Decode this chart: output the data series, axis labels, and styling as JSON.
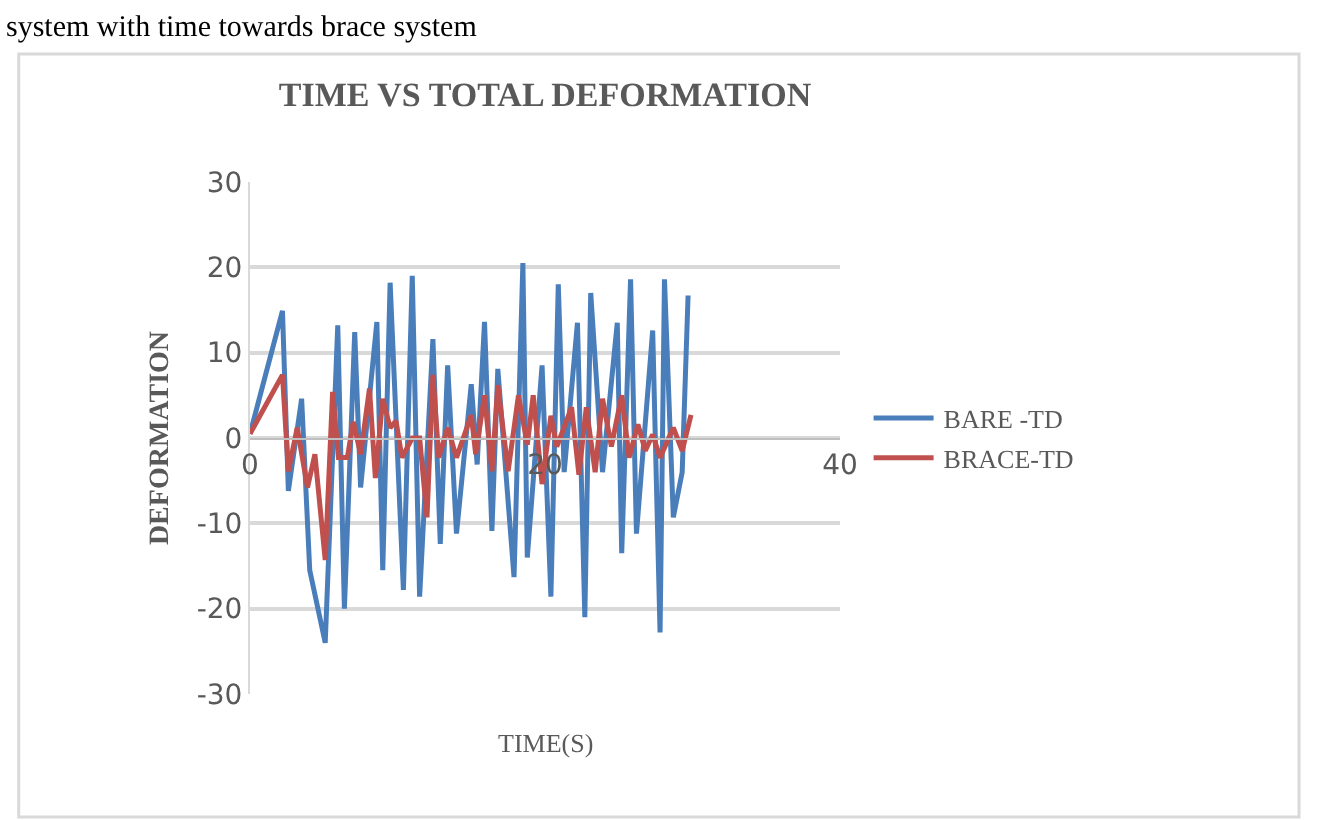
{
  "chart_data": {
    "type": "line",
    "title": "TIME VS TOTAL DEFORMATION",
    "xlabel": "TIME(S)",
    "ylabel": "DEFORMATION",
    "annotations": [
      "system with time towards brace system"
    ],
    "xlim": [
      0,
      40
    ],
    "xticks": [
      0,
      20,
      40
    ],
    "ylim": [
      -30,
      30
    ],
    "yticks": [
      -30,
      -20,
      -10,
      0,
      10,
      20,
      30
    ],
    "grid": "y",
    "legend": "right",
    "marker": "none",
    "line_style": "solid",
    "series": [
      {
        "name": "BARE -TD",
        "color": "#4a7ebb",
        "x": [
          0,
          2.2,
          2.6,
          3.5,
          4.05,
          5.1,
          5.95,
          6.4,
          7.1,
          7.5,
          8.6,
          9.0,
          9.5,
          10.4,
          11.0,
          11.5,
          12.4,
          12.9,
          13.4,
          14.0,
          15.0,
          15.4,
          15.9,
          16.4,
          16.8,
          17.9,
          18.5,
          18.8,
          19.8,
          20.4,
          20.9,
          21.3,
          22.2,
          22.7,
          23.1,
          23.9,
          24.9,
          25.2,
          25.8,
          26.2,
          27.3,
          27.8,
          28.1,
          28.7,
          29.3,
          29.7
        ],
        "values": [
          0.5,
          14.9,
          -6.2,
          4.6,
          -15.5,
          -24,
          13.2,
          -20,
          12.4,
          -5.8,
          13.6,
          -15.5,
          18.2,
          -17.8,
          19,
          -18.6,
          11.6,
          -12.4,
          8.5,
          -11.2,
          6.3,
          -3.1,
          13.6,
          -10.9,
          8.1,
          -16.3,
          20.5,
          -14,
          8.5,
          -18.6,
          18,
          -4,
          13.5,
          -21,
          17,
          -4,
          13.5,
          -13.5,
          18.6,
          -11.2,
          12.6,
          -22.8,
          18.6,
          -9.3,
          -4,
          16.7
        ]
      },
      {
        "name": "BRACE-TD",
        "color": "#c0504d",
        "x": [
          0,
          2.2,
          2.6,
          3.2,
          3.9,
          4.4,
          5.1,
          5.6,
          6.0,
          6.6,
          7.0,
          7.5,
          8.1,
          8.5,
          9.0,
          9.5,
          9.9,
          10.3,
          11.0,
          11.5,
          12.0,
          12.4,
          12.8,
          13.4,
          14.0,
          15.0,
          15.3,
          15.9,
          16.4,
          16.8,
          17.5,
          18.2,
          18.8,
          19.2,
          19.8,
          20.4,
          20.8,
          21.8,
          22.3,
          22.8,
          23.4,
          23.9,
          24.5,
          25.2,
          25.7,
          26.3,
          26.8,
          27.3,
          27.8,
          28.7,
          29.3,
          29.9
        ],
        "values": [
          0.5,
          7.4,
          -3.9,
          1.2,
          -5.8,
          -1.9,
          -14.3,
          5.4,
          -2.3,
          -2.3,
          1.9,
          -1.9,
          5.8,
          -4.7,
          4.6,
          1.2,
          2,
          -2.3,
          0,
          0,
          -9.3,
          7.4,
          -2.3,
          1.2,
          -2.3,
          2.7,
          -1.9,
          5,
          -3.9,
          6.2,
          -3.9,
          5,
          -0.8,
          5,
          -5.4,
          2.6,
          -1,
          3.6,
          -4.3,
          3.6,
          -4,
          4.6,
          -1,
          5,
          -2.3,
          1.6,
          -1.5,
          0.4,
          -2.3,
          1.2,
          -1.5,
          2.7
        ]
      }
    ]
  }
}
